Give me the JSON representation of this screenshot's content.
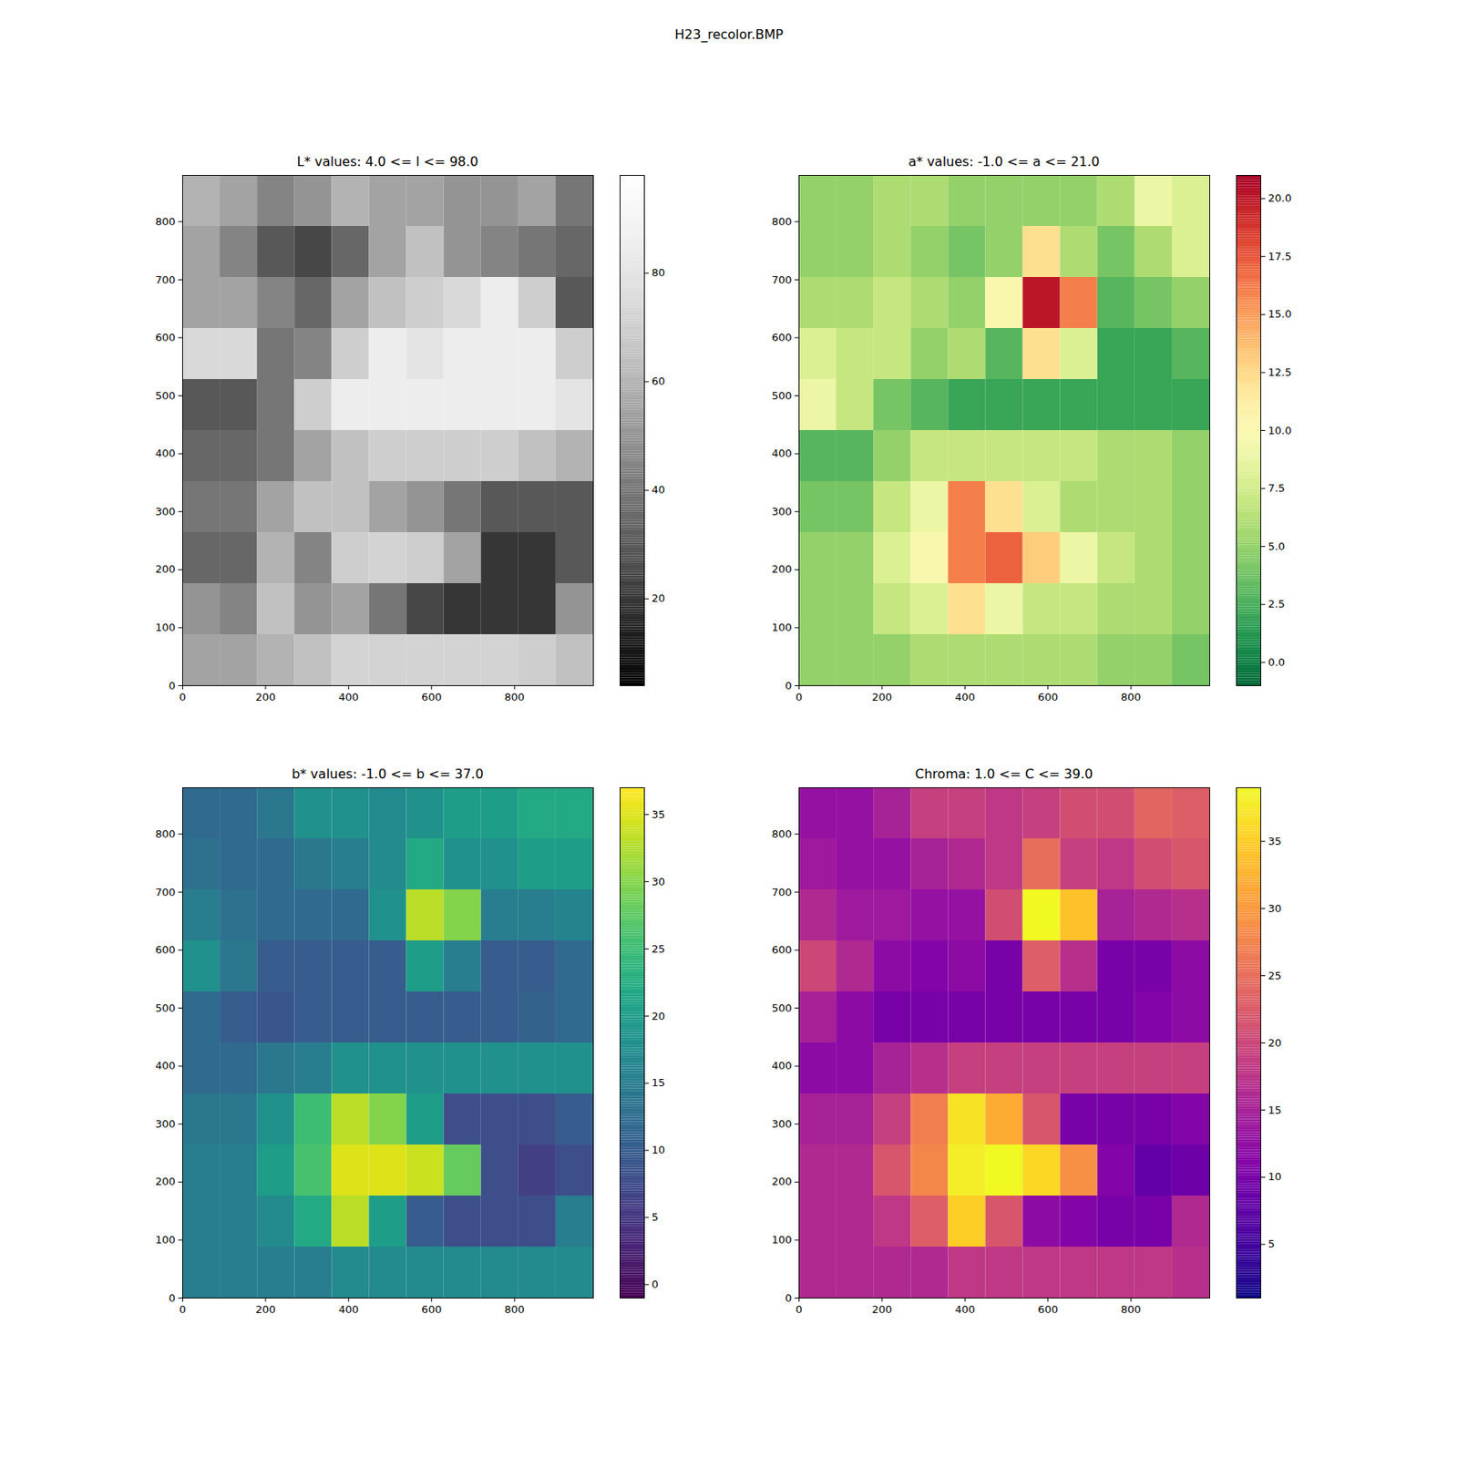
{
  "title": "H23_recolor.BMP",
  "chart_data": [
    {
      "type": "heatmap",
      "title": "L* values: 4.0 <= l <= 98.0",
      "color": "gray",
      "xlim": [
        0,
        990
      ],
      "ylim": [
        0,
        880
      ],
      "xticks": [
        0,
        200,
        400,
        600,
        800
      ],
      "yticks": [
        0,
        100,
        200,
        300,
        400,
        500,
        600,
        700,
        800
      ],
      "x_edges": [
        0,
        90,
        180,
        270,
        360,
        450,
        540,
        630,
        720,
        810,
        900,
        990
      ],
      "y_edges": [
        0,
        88,
        176,
        264,
        352,
        440,
        528,
        616,
        704,
        792,
        880
      ],
      "z": [
        [
          55,
          55,
          60,
          65,
          72,
          72,
          72,
          72,
          72,
          70,
          65
        ],
        [
          50,
          45,
          65,
          50,
          55,
          40,
          25,
          20,
          20,
          20,
          50
        ],
        [
          35,
          35,
          60,
          45,
          70,
          72,
          70,
          55,
          20,
          20,
          30
        ],
        [
          40,
          40,
          55,
          65,
          65,
          55,
          50,
          40,
          30,
          30,
          30
        ],
        [
          35,
          35,
          40,
          55,
          65,
          70,
          70,
          70,
          70,
          65,
          60
        ],
        [
          30,
          30,
          40,
          70,
          85,
          85,
          85,
          85,
          85,
          85,
          80
        ],
        [
          75,
          75,
          40,
          45,
          70,
          85,
          80,
          85,
          85,
          85,
          70
        ],
        [
          55,
          55,
          45,
          35,
          55,
          65,
          70,
          75,
          85,
          70,
          30
        ],
        [
          55,
          45,
          30,
          25,
          35,
          55,
          65,
          50,
          45,
          40,
          35
        ],
        [
          60,
          55,
          45,
          50,
          60,
          55,
          55,
          50,
          50,
          55,
          40
        ]
      ],
      "colorbar": {
        "range": [
          4,
          98
        ],
        "ticks": [
          20,
          40,
          60,
          80
        ]
      }
    },
    {
      "type": "heatmap",
      "title": "a* values: -1.0 <= a <= 21.0",
      "color": "RdYlGn_r",
      "xlim": [
        0,
        990
      ],
      "ylim": [
        0,
        880
      ],
      "xticks": [
        0,
        200,
        400,
        600,
        800
      ],
      "yticks": [
        0,
        100,
        200,
        300,
        400,
        500,
        600,
        700,
        800
      ],
      "x_edges": [
        0,
        90,
        180,
        270,
        360,
        450,
        540,
        630,
        720,
        810,
        900,
        990
      ],
      "y_edges": [
        0,
        88,
        176,
        264,
        352,
        440,
        528,
        616,
        704,
        792,
        880
      ],
      "z": [
        [
          5,
          5,
          5,
          6,
          6,
          6,
          6,
          6,
          5,
          5,
          4
        ],
        [
          5,
          5,
          7,
          8,
          12,
          9,
          7,
          7,
          6,
          6,
          5
        ],
        [
          5,
          5,
          8,
          10,
          16,
          17,
          13,
          9,
          7,
          6,
          5
        ],
        [
          4,
          4,
          7,
          9,
          16,
          12,
          8,
          6,
          6,
          6,
          5
        ],
        [
          3,
          3,
          5,
          7,
          7,
          7,
          7,
          7,
          6,
          6,
          5
        ],
        [
          9,
          7,
          4,
          3,
          2,
          2,
          2,
          2,
          2,
          2,
          2
        ],
        [
          8,
          7,
          7,
          5,
          6,
          3,
          12,
          8,
          2,
          2,
          3
        ],
        [
          6,
          6,
          7,
          6,
          5,
          10,
          20,
          16,
          3,
          4,
          5
        ],
        [
          5,
          5,
          6,
          5,
          4,
          5,
          12,
          6,
          4,
          6,
          8
        ],
        [
          5,
          5,
          6,
          6,
          5,
          5,
          5,
          5,
          6,
          9,
          8
        ]
      ],
      "colorbar": {
        "range": [
          -1,
          21
        ],
        "ticks": [
          {
            "value": 0,
            "label": "0.0"
          },
          {
            "value": 2.5,
            "label": "2.5"
          },
          {
            "value": 5,
            "label": "5.0"
          },
          {
            "value": 7.5,
            "label": "7.5"
          },
          {
            "value": 10,
            "label": "10.0"
          },
          {
            "value": 12.5,
            "label": "12.5"
          },
          {
            "value": 15,
            "label": "15.0"
          },
          {
            "value": 17.5,
            "label": "17.5"
          },
          {
            "value": 20,
            "label": "20.0"
          }
        ]
      }
    },
    {
      "type": "heatmap",
      "title": "b* values: -1.0 <= b <= 37.0",
      "color": "viridis",
      "xlim": [
        0,
        990
      ],
      "ylim": [
        0,
        880
      ],
      "xticks": [
        0,
        200,
        400,
        600,
        800
      ],
      "yticks": [
        0,
        100,
        200,
        300,
        400,
        500,
        600,
        700,
        800
      ],
      "x_edges": [
        0,
        90,
        180,
        270,
        360,
        450,
        540,
        630,
        720,
        810,
        900,
        990
      ],
      "y_edges": [
        0,
        88,
        176,
        264,
        352,
        440,
        528,
        616,
        704,
        792,
        880
      ],
      "z": [
        [
          15,
          15,
          15,
          15,
          17,
          17,
          17,
          17,
          17,
          17,
          17
        ],
        [
          15,
          15,
          17,
          22,
          33,
          20,
          10,
          8,
          8,
          8,
          15
        ],
        [
          15,
          15,
          20,
          26,
          35,
          35,
          34,
          28,
          8,
          6,
          8
        ],
        [
          14,
          14,
          18,
          25,
          33,
          30,
          20,
          8,
          8,
          8,
          10
        ],
        [
          12,
          12,
          14,
          15,
          18,
          18,
          18,
          18,
          18,
          18,
          18
        ],
        [
          12,
          10,
          9,
          10,
          10,
          10,
          10,
          10,
          10,
          11,
          12
        ],
        [
          18,
          14,
          10,
          10,
          10,
          10,
          20,
          15,
          10,
          10,
          12
        ],
        [
          15,
          13,
          12,
          12,
          12,
          18,
          33,
          30,
          15,
          15,
          16
        ],
        [
          13,
          12,
          12,
          14,
          15,
          17,
          22,
          18,
          18,
          20,
          20
        ],
        [
          12,
          12,
          14,
          18,
          18,
          17,
          18,
          20,
          20,
          22,
          22
        ]
      ],
      "colorbar": {
        "range": [
          -1,
          37
        ],
        "ticks": [
          0,
          5,
          10,
          15,
          20,
          25,
          30,
          35
        ]
      }
    },
    {
      "type": "heatmap",
      "title": "Chroma: 1.0 <= C <= 39.0",
      "color": "plasma",
      "xlim": [
        0,
        990
      ],
      "ylim": [
        0,
        880
      ],
      "xticks": [
        0,
        200,
        400,
        600,
        800
      ],
      "yticks": [
        0,
        100,
        200,
        300,
        400,
        500,
        600,
        700,
        800
      ],
      "x_edges": [
        0,
        90,
        180,
        270,
        360,
        450,
        540,
        630,
        720,
        810,
        900,
        990
      ],
      "y_edges": [
        0,
        88,
        176,
        264,
        352,
        440,
        528,
        616,
        704,
        792,
        880
      ],
      "z": [
        [
          16,
          16,
          16,
          16,
          18,
          18,
          18,
          18,
          18,
          18,
          17
        ],
        [
          16,
          16,
          18,
          23,
          35,
          22,
          12,
          11,
          10,
          10,
          16
        ],
        [
          16,
          16,
          22,
          28,
          38,
          39,
          36,
          29,
          11,
          8,
          9
        ],
        [
          15,
          15,
          19,
          27,
          37,
          32,
          22,
          10,
          10,
          10,
          11
        ],
        [
          12,
          12,
          15,
          17,
          19,
          19,
          19,
          19,
          19,
          19,
          19
        ],
        [
          15,
          12,
          10,
          10,
          10,
          10,
          10,
          10,
          10,
          11,
          12
        ],
        [
          20,
          16,
          12,
          11,
          12,
          10,
          23,
          17,
          10,
          10,
          12
        ],
        [
          16,
          14,
          14,
          13,
          13,
          21,
          39,
          34,
          15,
          16,
          17
        ],
        [
          14,
          13,
          13,
          15,
          16,
          18,
          25,
          19,
          18,
          21,
          22
        ],
        [
          13,
          13,
          15,
          19,
          19,
          18,
          19,
          21,
          21,
          24,
          23
        ]
      ],
      "colorbar": {
        "range": [
          1,
          39
        ],
        "ticks": [
          5,
          10,
          15,
          20,
          25,
          30,
          35
        ]
      }
    }
  ]
}
